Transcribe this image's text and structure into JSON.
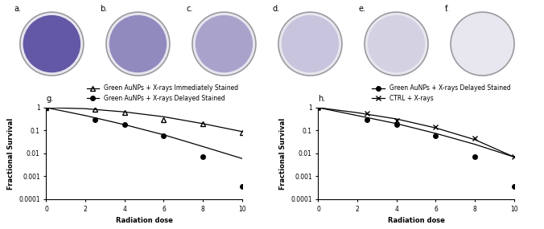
{
  "images": [
    {
      "label": "a."
    },
    {
      "label": "b."
    },
    {
      "label": "c."
    },
    {
      "label": "d."
    },
    {
      "label": "e."
    },
    {
      "label": "f."
    }
  ],
  "chart_data": [
    {
      "type": "line",
      "title": "g.",
      "x_label": "Radiation dose",
      "y_label": "Fractional Survival",
      "log": "y",
      "legend": "upper right",
      "xlim": [
        0,
        10
      ],
      "xticks": [
        0,
        2,
        4,
        6,
        8,
        10
      ],
      "ylim": [
        0.0001,
        1
      ],
      "yticks": [
        0.0001,
        0.001,
        0.01,
        0.1,
        1
      ],
      "x": [
        0,
        2.5,
        4,
        6,
        8,
        10
      ],
      "series": [
        {
          "name": "Green AuNPs + X-rays Immediately Stained",
          "color": "#000000",
          "marker": "triangle",
          "values": [
            1,
            0.85,
            0.6,
            0.3,
            0.2,
            0.08
          ],
          "fit": {
            "x": [
              0,
              2,
              4,
              6,
              8,
              10
            ],
            "values": [
              1,
              0.9,
              0.65,
              0.4,
              0.2,
              0.09
            ]
          }
        },
        {
          "name": "Green AuNPs + X-rays Delayed Stained",
          "color": "#000000",
          "marker": "circle",
          "values": [
            1,
            0.3,
            0.18,
            0.06,
            0.007,
            0.00035
          ],
          "fit": {
            "x": [
              0,
              2,
              4,
              6,
              8,
              10
            ],
            "values": [
              1,
              0.45,
              0.18,
              0.065,
              0.02,
              0.006
            ]
          }
        }
      ]
    },
    {
      "type": "line",
      "title": "h.",
      "x_label": "Radiation dose",
      "y_label": "Fractional Survival",
      "log": "y",
      "legend": "upper right",
      "xlim": [
        0,
        10
      ],
      "xticks": [
        0,
        2,
        4,
        6,
        8,
        10
      ],
      "ylim": [
        0.0001,
        1
      ],
      "yticks": [
        0.0001,
        0.001,
        0.01,
        0.1,
        1
      ],
      "x": [
        0,
        2.5,
        4,
        6,
        8,
        10
      ],
      "series": [
        {
          "name": "Green AuNPs + X-rays Delayed Stained",
          "color": "#000000",
          "marker": "circle",
          "values": [
            1,
            0.3,
            0.18,
            0.06,
            0.007,
            0.00035
          ],
          "fit": {
            "x": [
              0,
              2,
              4,
              6,
              8,
              10
            ],
            "values": [
              1,
              0.45,
              0.2,
              0.075,
              0.025,
              0.007
            ]
          }
        },
        {
          "name": "CTRL + X-rays",
          "color": "#000000",
          "marker": "x",
          "values": [
            1,
            0.55,
            0.28,
            0.14,
            0.045,
            0.007
          ],
          "fit": {
            "x": [
              0,
              2,
              4,
              6,
              8,
              10
            ],
            "values": [
              1,
              0.6,
              0.32,
              0.13,
              0.04,
              0.007
            ]
          }
        }
      ]
    }
  ]
}
